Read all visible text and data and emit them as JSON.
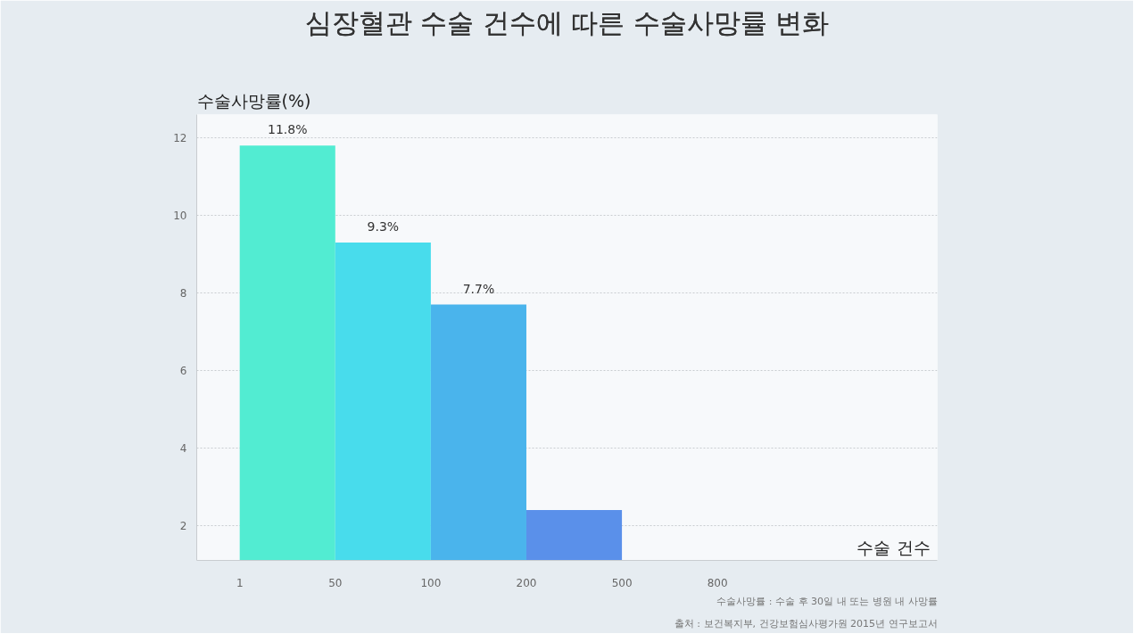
{
  "chart_data": {
    "type": "bar",
    "title": "심장혈관 수술 건수에 따른 수술사망률 변화",
    "ylabel": "수술사망률(%)",
    "categories": [
      null,
      null,
      null,
      null
    ],
    "values": [
      11.8,
      9.3,
      7.7,
      2.4
    ],
    "value_labels": [
      "11.8%",
      "9.3%",
      "7.7%",
      null
    ],
    "colors": [
      "#52ecd2",
      "#48dcec",
      "#4ab4ec",
      "#5a90ea"
    ],
    "ylim": [
      1.1,
      12.6
    ],
    "yticks": [
      2,
      4,
      6,
      8,
      10,
      12
    ],
    "grid": "y",
    "annotations": [
      "1",
      "50",
      "100",
      "200",
      "500",
      "800",
      "수술 건수",
      "수술사망률 : 수술 후 30일 내 또는 병원 내 사망률",
      "출처 : 보건복지부, 건강보험심사평가원 2015년 연구보고서"
    ]
  }
}
